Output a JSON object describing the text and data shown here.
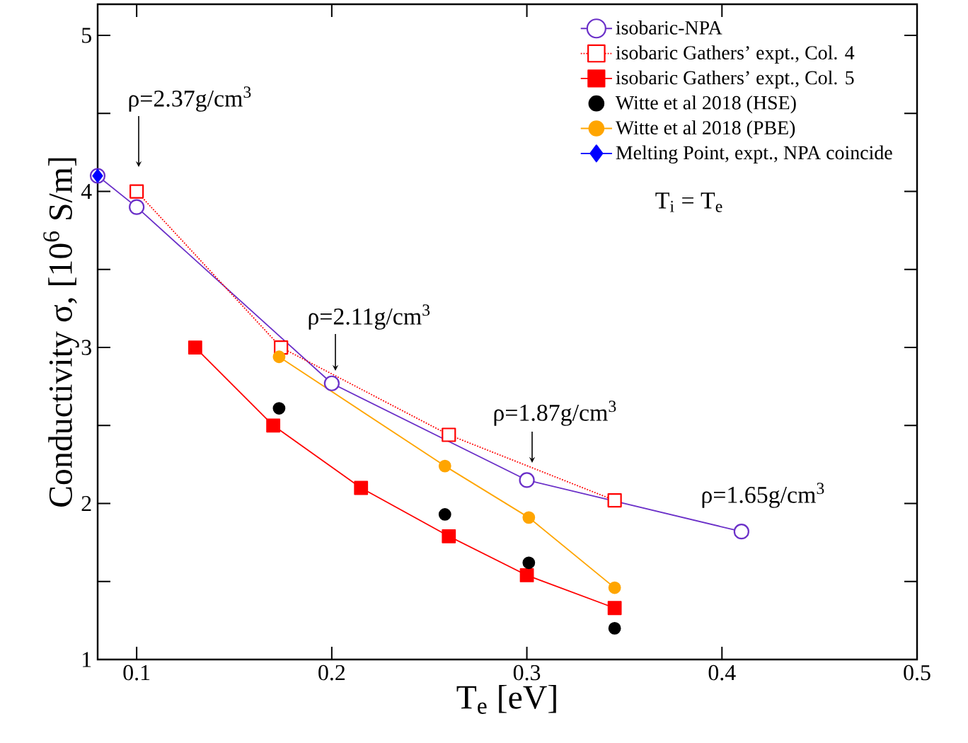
{
  "chart_data": {
    "type": "line",
    "xlabel": "T$_{e}$ [eV]",
    "ylabel": "Conductivity σ,  [10$^{6}$ S/m]",
    "xlim": [
      0.08,
      0.5
    ],
    "ylim": [
      1,
      5.2
    ],
    "xticks": [
      0.1,
      0.2,
      0.3,
      0.4,
      0.5
    ],
    "yticks": [
      1,
      {
        "value": 1.5,
        "label": null
      },
      2,
      {
        "value": 2.5,
        "label": null
      },
      3,
      {
        "value": 3.5,
        "label": null
      },
      4,
      {
        "value": 4.5,
        "label": null
      },
      5
    ],
    "legend": "top right",
    "series": [
      {
        "name": "isobaric-NPA",
        "color": "#6a2fc8",
        "marker": "circle",
        "line_style": "solid",
        "x": [
          0.08,
          0.1,
          0.2,
          0.3,
          0.41
        ],
        "values": [
          4.1,
          3.9,
          2.77,
          2.15,
          1.82
        ]
      },
      {
        "name": "isobaric Gathers’ expt., Col. 4",
        "color": "#ff0000",
        "marker": "square",
        "line_style": "dotted",
        "x": [
          0.1,
          0.174,
          0.26,
          0.345
        ],
        "values": [
          4.0,
          3.0,
          2.44,
          2.02
        ]
      },
      {
        "name": "isobaric Gathers’ expt., Col.  5",
        "color": "#ff0000",
        "marker": "square",
        "line_style": "solid",
        "x": [
          0.13,
          0.17,
          0.215,
          0.26,
          0.3,
          0.345
        ],
        "values": [
          3.0,
          2.5,
          2.1,
          1.79,
          1.54,
          1.33
        ]
      },
      {
        "name": "Witte et al 2018 (HSE)",
        "type": "scatter",
        "color": "#000000",
        "marker": "circle",
        "x": [
          0.173,
          0.258,
          0.301,
          0.345
        ],
        "values": [
          2.61,
          1.93,
          1.62,
          1.2
        ]
      },
      {
        "name": "Witte et al 2018 (PBE)",
        "color": "#ffa500",
        "marker": "circle",
        "line_style": "solid",
        "x": [
          0.173,
          0.258,
          0.301,
          0.345
        ],
        "values": [
          2.94,
          2.24,
          1.91,
          1.46
        ]
      },
      {
        "name": "Melting Point, expt., NPA coincide",
        "color": "#0000ff",
        "marker": "diamond",
        "line_style": "solid",
        "x": [
          0.08
        ],
        "values": [
          4.1
        ]
      }
    ],
    "annotations": [
      "ρ=2.37g/cm$^{3}$",
      "ρ=2.11g/cm$^{3}$",
      "ρ=1.87g/cm$^{3}$",
      "ρ=1.65g/cm$^{3}$",
      "T$_{i}$ = T$_{e}$"
    ]
  }
}
